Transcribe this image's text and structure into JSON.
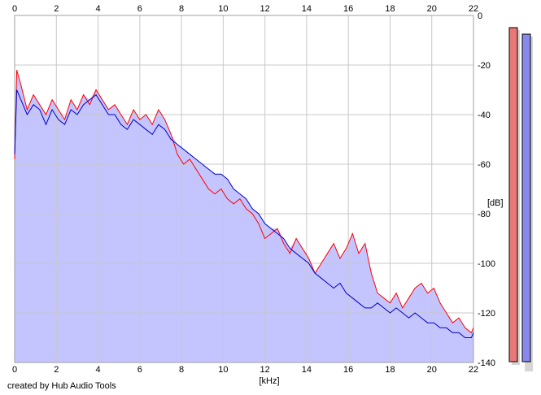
{
  "chart_data": {
    "type": "line",
    "xlabel": "[kHz]",
    "ylabel": "[dB]",
    "xlim": [
      0,
      22
    ],
    "ylim": [
      -140,
      0
    ],
    "x_ticks": [
      0,
      2,
      4,
      6,
      8,
      10,
      12,
      14,
      16,
      18,
      20,
      22
    ],
    "y_ticks": [
      0,
      -20,
      -40,
      -60,
      -80,
      -100,
      -120,
      -140
    ],
    "grid": true,
    "x_tick_positions": "top-and-bottom",
    "y_tick_positions": "right",
    "fill_color": "#c4c4ff",
    "series": [
      {
        "color": "#ff0000",
        "points": [
          [
            0,
            -58
          ],
          [
            0.1,
            -22
          ],
          [
            0.3,
            -28
          ],
          [
            0.6,
            -38
          ],
          [
            0.9,
            -32
          ],
          [
            1.2,
            -36
          ],
          [
            1.5,
            -40
          ],
          [
            1.8,
            -34
          ],
          [
            2.1,
            -38
          ],
          [
            2.4,
            -42
          ],
          [
            2.7,
            -34
          ],
          [
            3.0,
            -38
          ],
          [
            3.3,
            -32
          ],
          [
            3.6,
            -36
          ],
          [
            3.9,
            -30
          ],
          [
            4.2,
            -34
          ],
          [
            4.5,
            -38
          ],
          [
            4.8,
            -36
          ],
          [
            5.1,
            -40
          ],
          [
            5.4,
            -44
          ],
          [
            5.7,
            -38
          ],
          [
            6.0,
            -42
          ],
          [
            6.3,
            -40
          ],
          [
            6.6,
            -44
          ],
          [
            6.9,
            -38
          ],
          [
            7.2,
            -42
          ],
          [
            7.5,
            -48
          ],
          [
            7.8,
            -56
          ],
          [
            8.1,
            -60
          ],
          [
            8.4,
            -58
          ],
          [
            8.7,
            -62
          ],
          [
            9.0,
            -66
          ],
          [
            9.3,
            -70
          ],
          [
            9.6,
            -72
          ],
          [
            9.9,
            -70
          ],
          [
            10.2,
            -74
          ],
          [
            10.5,
            -76
          ],
          [
            10.8,
            -74
          ],
          [
            11.1,
            -78
          ],
          [
            11.4,
            -80
          ],
          [
            11.7,
            -84
          ],
          [
            12.0,
            -90
          ],
          [
            12.3,
            -88
          ],
          [
            12.6,
            -86
          ],
          [
            12.9,
            -92
          ],
          [
            13.2,
            -96
          ],
          [
            13.5,
            -90
          ],
          [
            13.8,
            -94
          ],
          [
            14.1,
            -98
          ],
          [
            14.4,
            -104
          ],
          [
            14.7,
            -100
          ],
          [
            15.0,
            -96
          ],
          [
            15.3,
            -92
          ],
          [
            15.6,
            -98
          ],
          [
            15.9,
            -94
          ],
          [
            16.2,
            -88
          ],
          [
            16.5,
            -96
          ],
          [
            16.8,
            -92
          ],
          [
            17.1,
            -104
          ],
          [
            17.4,
            -112
          ],
          [
            17.7,
            -114
          ],
          [
            18.0,
            -116
          ],
          [
            18.3,
            -112
          ],
          [
            18.6,
            -118
          ],
          [
            18.9,
            -114
          ],
          [
            19.2,
            -110
          ],
          [
            19.5,
            -108
          ],
          [
            19.8,
            -112
          ],
          [
            20.1,
            -110
          ],
          [
            20.4,
            -116
          ],
          [
            20.7,
            -120
          ],
          [
            21.0,
            -124
          ],
          [
            21.3,
            -122
          ],
          [
            21.6,
            -126
          ],
          [
            21.9,
            -128
          ],
          [
            22,
            -126
          ]
        ]
      },
      {
        "color": "#0000cc",
        "points": [
          [
            0,
            -56
          ],
          [
            0.1,
            -30
          ],
          [
            0.3,
            -34
          ],
          [
            0.6,
            -40
          ],
          [
            0.9,
            -36
          ],
          [
            1.2,
            -38
          ],
          [
            1.5,
            -44
          ],
          [
            1.8,
            -38
          ],
          [
            2.1,
            -42
          ],
          [
            2.4,
            -44
          ],
          [
            2.7,
            -38
          ],
          [
            3.0,
            -40
          ],
          [
            3.3,
            -36
          ],
          [
            3.6,
            -34
          ],
          [
            3.9,
            -32
          ],
          [
            4.2,
            -36
          ],
          [
            4.5,
            -40
          ],
          [
            4.8,
            -40
          ],
          [
            5.1,
            -44
          ],
          [
            5.4,
            -46
          ],
          [
            5.7,
            -42
          ],
          [
            6.0,
            -44
          ],
          [
            6.3,
            -46
          ],
          [
            6.6,
            -48
          ],
          [
            6.9,
            -44
          ],
          [
            7.2,
            -46
          ],
          [
            7.5,
            -50
          ],
          [
            7.8,
            -52
          ],
          [
            8.1,
            -54
          ],
          [
            8.4,
            -56
          ],
          [
            8.7,
            -58
          ],
          [
            9.0,
            -60
          ],
          [
            9.3,
            -62
          ],
          [
            9.6,
            -64
          ],
          [
            9.9,
            -64
          ],
          [
            10.2,
            -66
          ],
          [
            10.5,
            -70
          ],
          [
            10.8,
            -72
          ],
          [
            11.1,
            -74
          ],
          [
            11.4,
            -78
          ],
          [
            11.7,
            -80
          ],
          [
            12.0,
            -84
          ],
          [
            12.3,
            -86
          ],
          [
            12.6,
            -88
          ],
          [
            12.9,
            -90
          ],
          [
            13.2,
            -94
          ],
          [
            13.5,
            -96
          ],
          [
            13.8,
            -98
          ],
          [
            14.1,
            -100
          ],
          [
            14.4,
            -104
          ],
          [
            14.7,
            -106
          ],
          [
            15.0,
            -108
          ],
          [
            15.3,
            -110
          ],
          [
            15.6,
            -108
          ],
          [
            15.9,
            -112
          ],
          [
            16.2,
            -114
          ],
          [
            16.5,
            -116
          ],
          [
            16.8,
            -118
          ],
          [
            17.1,
            -118
          ],
          [
            17.4,
            -116
          ],
          [
            17.7,
            -118
          ],
          [
            18.0,
            -120
          ],
          [
            18.3,
            -118
          ],
          [
            18.6,
            -120
          ],
          [
            18.9,
            -122
          ],
          [
            19.2,
            -120
          ],
          [
            19.5,
            -122
          ],
          [
            19.8,
            -124
          ],
          [
            20.1,
            -124
          ],
          [
            20.4,
            -126
          ],
          [
            20.7,
            -126
          ],
          [
            21.0,
            -128
          ],
          [
            21.3,
            -128
          ],
          [
            21.6,
            -130
          ],
          [
            21.9,
            -130
          ],
          [
            22,
            -128
          ]
        ]
      }
    ]
  },
  "level_meters": [
    {
      "name": "left",
      "color": "#e87878",
      "shadow": "#d6d6d6"
    },
    {
      "name": "right",
      "color": "#8888ee",
      "shadow": "#d6d6d6"
    }
  ],
  "credit": "created by Hub Audio Tools",
  "colors": {
    "grid": "#c8c8c8",
    "axis": "#a0a0a0",
    "background": "#ffffff"
  }
}
